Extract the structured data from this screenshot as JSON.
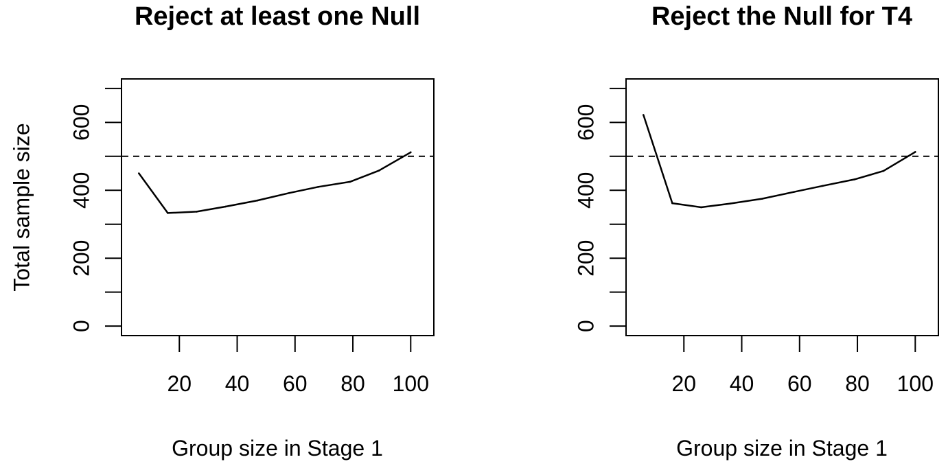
{
  "chart_data": [
    {
      "type": "line",
      "title": "Reject at least one Null",
      "xlabel": "Group size in Stage 1",
      "ylabel": "Total sample size",
      "xlim": [
        4,
        104
      ],
      "ylim": [
        0,
        700
      ],
      "xticks": [
        20,
        40,
        60,
        80,
        100
      ],
      "yticks": [
        0,
        200,
        400,
        600
      ],
      "series": [
        {
          "x": [
            6,
            16,
            26,
            36,
            47,
            58,
            68,
            79,
            89,
            100
          ],
          "y": [
            450,
            333,
            337,
            352,
            370,
            392,
            410,
            425,
            458,
            512
          ]
        }
      ],
      "reference_line": {
        "y": 500,
        "style": "dashed"
      },
      "grid": false
    },
    {
      "type": "line",
      "title": "Reject the Null for T4",
      "xlabel": "Group size in Stage 1",
      "ylabel": "",
      "xlim": [
        4,
        104
      ],
      "ylim": [
        0,
        700
      ],
      "xticks": [
        20,
        40,
        60,
        80,
        100
      ],
      "yticks": [
        0,
        200,
        400,
        600
      ],
      "series": [
        {
          "x": [
            6,
            16,
            26,
            36,
            47,
            58,
            68,
            79,
            89,
            100
          ],
          "y": [
            622,
            362,
            350,
            361,
            375,
            395,
            413,
            432,
            457,
            513
          ]
        }
      ],
      "reference_line": {
        "y": 500,
        "style": "dashed"
      },
      "grid": false
    }
  ],
  "colors": {
    "line": "#000000",
    "background": "#ffffff"
  }
}
